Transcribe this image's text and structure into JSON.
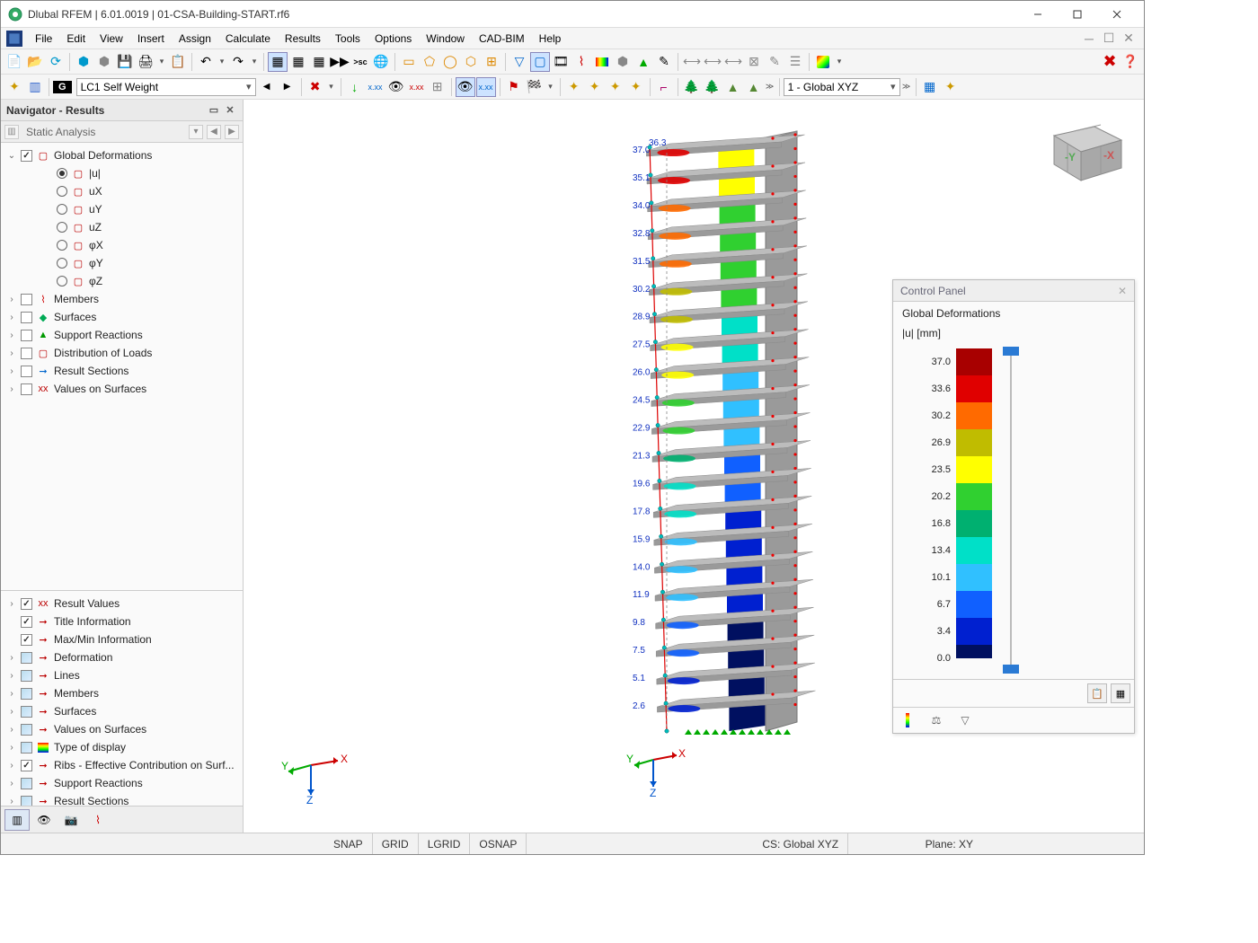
{
  "app": {
    "title": "Dlubal RFEM | 6.01.0019 | 01-CSA-Building-START.rf6"
  },
  "menu": [
    "File",
    "Edit",
    "View",
    "Insert",
    "Assign",
    "Calculate",
    "Results",
    "Tools",
    "Options",
    "Window",
    "CAD-BIM",
    "Help"
  ],
  "toolbar2": {
    "lc_badge": "G",
    "lc_label": "LC1   Self Weight",
    "coord": "1 - Global XYZ"
  },
  "navigator": {
    "title": "Navigator - Results",
    "sub": "Static Analysis",
    "tree": [
      {
        "exp": "v",
        "check": true,
        "icon": "▢",
        "label": "Global Deformations",
        "lvl": 0
      },
      {
        "radio": true,
        "sel": true,
        "icon": "▢",
        "label": "|u|",
        "lvl": 2
      },
      {
        "radio": true,
        "icon": "▢",
        "label": "uX",
        "lvl": 2
      },
      {
        "radio": true,
        "icon": "▢",
        "label": "uY",
        "lvl": 2
      },
      {
        "radio": true,
        "icon": "▢",
        "label": "uZ",
        "lvl": 2
      },
      {
        "radio": true,
        "icon": "▢",
        "label": "φX",
        "lvl": 2
      },
      {
        "radio": true,
        "icon": "▢",
        "label": "φY",
        "lvl": 2
      },
      {
        "radio": true,
        "icon": "▢",
        "label": "φZ",
        "lvl": 2
      },
      {
        "exp": ">",
        "check": false,
        "icon": "⌇",
        "label": "Members",
        "lvl": 0,
        "iconColor": "#c00"
      },
      {
        "exp": ">",
        "check": false,
        "icon": "◆",
        "label": "Surfaces",
        "lvl": 0,
        "iconColor": "#0a5"
      },
      {
        "exp": ">",
        "check": false,
        "icon": "▲",
        "label": "Support Reactions",
        "lvl": 0,
        "iconColor": "#090"
      },
      {
        "exp": ">",
        "check": false,
        "icon": "▢",
        "label": "Distribution of Loads",
        "lvl": 0,
        "iconColor": "#b00"
      },
      {
        "exp": ">",
        "check": false,
        "icon": "➞",
        "label": "Result Sections",
        "lvl": 0,
        "iconColor": "#06c"
      },
      {
        "exp": ">",
        "check": false,
        "icon": "xx",
        "label": "Values on Surfaces",
        "lvl": 0
      }
    ],
    "lower": [
      {
        "exp": ">",
        "check": true,
        "icon": "xx",
        "label": "Result Values"
      },
      {
        "exp": "",
        "check": true,
        "icon": "➞",
        "label": "Title Information"
      },
      {
        "exp": "",
        "check": true,
        "icon": "➞",
        "label": "Max/Min Information"
      },
      {
        "exp": ">",
        "check": false,
        "icon": "➞",
        "label": "Deformation",
        "box": true
      },
      {
        "exp": ">",
        "check": false,
        "icon": "➞",
        "label": "Lines",
        "box": true
      },
      {
        "exp": ">",
        "check": false,
        "icon": "➞",
        "label": "Members",
        "box": true
      },
      {
        "exp": ">",
        "check": false,
        "icon": "➞",
        "label": "Surfaces",
        "box": true
      },
      {
        "exp": ">",
        "check": false,
        "icon": "➞",
        "label": "Values on Surfaces",
        "box": true
      },
      {
        "exp": ">",
        "check": false,
        "icon": "▦",
        "label": "Type of display",
        "box": true,
        "iconColor": "rainbow"
      },
      {
        "exp": ">",
        "check": true,
        "icon": "➞",
        "label": "Ribs - Effective Contribution on Surf..."
      },
      {
        "exp": ">",
        "check": false,
        "icon": "➞",
        "label": "Support Reactions",
        "box": true
      },
      {
        "exp": ">",
        "check": false,
        "icon": "➞",
        "label": "Result Sections",
        "box": true
      }
    ]
  },
  "control_panel": {
    "title": "Control Panel",
    "sub1": "Global Deformations",
    "sub2": "|u| [mm]",
    "scale": [
      {
        "v": "37.0",
        "c": "#a80000"
      },
      {
        "v": "33.6",
        "c": "#e00000"
      },
      {
        "v": "30.2",
        "c": "#ff6a00"
      },
      {
        "v": "26.9",
        "c": "#c0bc00"
      },
      {
        "v": "23.5",
        "c": "#ffff00"
      },
      {
        "v": "20.2",
        "c": "#30d030"
      },
      {
        "v": "16.8",
        "c": "#00b070"
      },
      {
        "v": "13.4",
        "c": "#00e0c8"
      },
      {
        "v": "10.1",
        "c": "#30c0ff"
      },
      {
        "v": "6.7",
        "c": "#1060ff"
      },
      {
        "v": "3.4",
        "c": "#0020d0"
      },
      {
        "v": "0.0",
        "c": "#001060"
      }
    ]
  },
  "model": {
    "labels": [
      "37.0",
      "35.1",
      "34.0",
      "32.8",
      "31.5",
      "30.2",
      "28.9",
      "27.5",
      "26.0",
      "24.5",
      "22.9",
      "21.3",
      "19.6",
      "17.8",
      "15.9",
      "14.0",
      "11.9",
      "9.8",
      "7.5",
      "5.1",
      "2.6"
    ],
    "top_extra": "36.3",
    "colors_left": [
      "#e00000",
      "#e00000",
      "#ff6a00",
      "#ff6a00",
      "#ff6a00",
      "#c0bc00",
      "#c0bc00",
      "#ffff00",
      "#ffff00",
      "#30d030",
      "#30d030",
      "#00b070",
      "#00e0c8",
      "#00e0c8",
      "#30c0ff",
      "#30c0ff",
      "#30c0ff",
      "#1060ff",
      "#1060ff",
      "#0020d0",
      "#0020d0"
    ],
    "wall_colors": [
      "#ffff00",
      "#ffff00",
      "#30d030",
      "#30d030",
      "#30d030",
      "#30d030",
      "#00e0c8",
      "#00e0c8",
      "#30c0ff",
      "#30c0ff",
      "#30c0ff",
      "#1060ff",
      "#1060ff",
      "#0020d0",
      "#0020d0",
      "#0020d0",
      "#0020d0",
      "#001060",
      "#001060",
      "#001060",
      "#001060"
    ]
  },
  "status": {
    "snap": "SNAP",
    "grid": "GRID",
    "lgrid": "LGRID",
    "osnap": "OSNAP",
    "cs": "CS: Global XYZ",
    "plane": "Plane: XY"
  }
}
